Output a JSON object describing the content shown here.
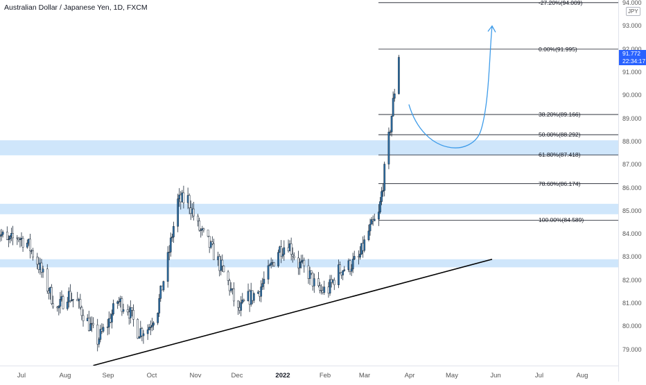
{
  "header": {
    "title": "Australian Dollar / Japanese Yen, 1D, FXCM",
    "currency": "JPY"
  },
  "price_axis": {
    "ticks": [
      "94.000",
      "93.000",
      "92.000",
      "91.000",
      "90.000",
      "89.000",
      "88.000",
      "87.000",
      "86.000",
      "85.000",
      "84.000",
      "83.000",
      "82.000",
      "81.000",
      "80.000",
      "79.000"
    ]
  },
  "time_axis": {
    "labels": [
      "Jul",
      "Aug",
      "Sep",
      "Oct",
      "Nov",
      "Dec",
      "2022",
      "Feb",
      "Mar",
      "Apr",
      "May",
      "Jun",
      "Jul",
      "Aug"
    ]
  },
  "last_price": {
    "value": "91.772",
    "countdown": "22:34:17"
  },
  "colors": {
    "candle": "#2c6fa6",
    "zone": "#cfe6fb",
    "fib_line": "#131722",
    "trendline": "#000000",
    "projection": "#3d9be9",
    "price_tag": "#2962ff"
  },
  "fib_levels": [
    {
      "label": "-27.20%(94.009)",
      "price": 94.009
    },
    {
      "label": "0.00%(91.995)",
      "price": 91.995
    },
    {
      "label": "38.20%(89.166)",
      "price": 89.166
    },
    {
      "label": "50.00%(88.292)",
      "price": 88.292
    },
    {
      "label": "61.80%(87.418)",
      "price": 87.418
    },
    {
      "label": "78.60%(86.174)",
      "price": 86.174
    },
    {
      "label": "100.00%(84.589)",
      "price": 84.589
    }
  ],
  "zones": [
    {
      "top": 88.05,
      "bottom": 87.4
    },
    {
      "top": 85.3,
      "bottom": 84.85
    },
    {
      "top": 82.9,
      "bottom": 82.55
    }
  ],
  "chart_data": {
    "type": "candlestick",
    "title": "Australian Dollar / Japanese Yen, 1D, FXCM",
    "ylim": [
      78.0,
      94.1
    ],
    "close_path": [
      [
        "2021-06-14",
        84.2
      ],
      [
        "2021-06-21",
        83.6
      ],
      [
        "2021-06-28",
        83.9
      ],
      [
        "2021-07-05",
        83.6
      ],
      [
        "2021-07-12",
        82.8
      ],
      [
        "2021-07-19",
        81.7
      ],
      [
        "2021-07-26",
        80.7
      ],
      [
        "2021-08-02",
        81.4
      ],
      [
        "2021-08-09",
        81.0
      ],
      [
        "2021-08-16",
        80.2
      ],
      [
        "2021-08-23",
        79.4
      ],
      [
        "2021-08-30",
        80.1
      ],
      [
        "2021-09-06",
        81.1
      ],
      [
        "2021-09-13",
        80.8
      ],
      [
        "2021-09-20",
        79.8
      ],
      [
        "2021-09-27",
        79.9
      ],
      [
        "2021-10-04",
        80.8
      ],
      [
        "2021-10-11",
        82.9
      ],
      [
        "2021-10-18",
        85.4
      ],
      [
        "2021-10-25",
        85.5
      ],
      [
        "2021-11-01",
        84.3
      ],
      [
        "2021-11-08",
        83.6
      ],
      [
        "2021-11-15",
        82.8
      ],
      [
        "2021-11-22",
        81.9
      ],
      [
        "2021-11-29",
        80.6
      ],
      [
        "2021-12-06",
        81.2
      ],
      [
        "2021-12-13",
        81.5
      ],
      [
        "2021-12-20",
        82.3
      ],
      [
        "2021-12-27",
        83.3
      ],
      [
        "2022-01-03",
        83.6
      ],
      [
        "2022-01-10",
        82.7
      ],
      [
        "2022-01-17",
        82.3
      ],
      [
        "2022-01-24",
        81.5
      ],
      [
        "2022-01-31",
        81.6
      ],
      [
        "2022-02-07",
        82.4
      ],
      [
        "2022-02-14",
        82.6
      ],
      [
        "2022-02-21",
        82.9
      ],
      [
        "2022-02-28",
        84.1
      ],
      [
        "2022-03-07",
        84.8
      ],
      [
        "2022-03-14",
        88.1
      ],
      [
        "2022-03-21",
        91.772
      ]
    ],
    "trendline": [
      [
        "2021-08-20",
        78.3
      ],
      [
        "2022-05-25",
        82.9
      ]
    ],
    "projection": [
      [
        "2022-03-28",
        89.6
      ],
      [
        "2022-04-28",
        87.6
      ],
      [
        "2022-05-25",
        93.0
      ]
    ]
  }
}
